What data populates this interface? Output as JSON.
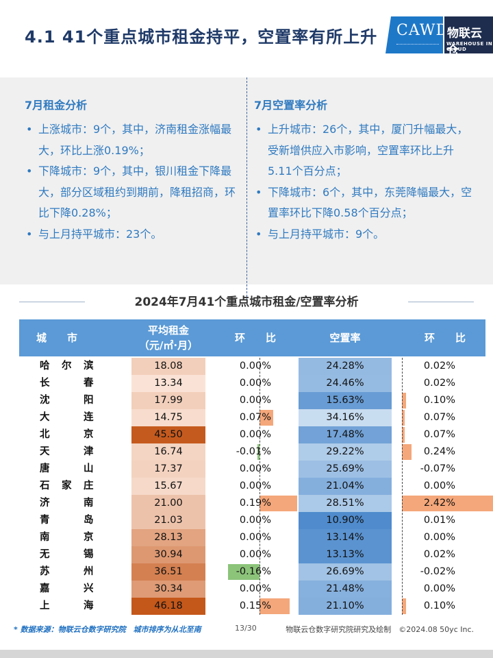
{
  "header": {
    "title": "4.1 41个重点城市租金持平，空置率有所上升",
    "logo_left": "CAWD",
    "logo_right_cn": "物联云仓",
    "logo_right_en": "WAREHOUSE IN CLOUD"
  },
  "rent_analysis": {
    "heading": "7月租金分析",
    "bullets": [
      "上涨城市：9个，其中，济南租金涨幅最大，环比上涨0.19%；",
      "下降城市：9个，其中，银川租金下降最大，部分区域租约到期前，降租招商，环比下降0.28%；",
      "与上月持平城市：23个。"
    ]
  },
  "vacancy_analysis": {
    "heading": "7月空置率分析",
    "bullets": [
      "上升城市：26个，其中，厦门升幅最大，受新增供应入市影响，空置率环比上升5.11个百分点；",
      "下降城市：6个，其中，东莞降幅最大，空置率环比下降0.58个百分点；",
      "与上月持平城市：9个。"
    ]
  },
  "table": {
    "title": "2024年7月41个重点城市租金/空置率分析",
    "headers": {
      "city": "城　　市",
      "rent": "平均租金",
      "rent_unit": "（元/㎡·月）",
      "rent_change": "环　　比",
      "vacancy": "空置率",
      "vacancy_change": "环　　比"
    },
    "colors": {
      "rent_high": "#c4571a",
      "rent_low": "#fae3d6",
      "vacancy_high": "#4f8bcd",
      "vacancy_low": "#c9ddf1",
      "positive_bar": "#f4a77a",
      "negative_bar": "#8cc47a"
    }
  },
  "chart_data": {
    "type": "table",
    "columns": [
      "城市",
      "平均租金（元/㎡·月）",
      "租金环比",
      "空置率",
      "空置率环比"
    ],
    "rows": [
      {
        "city": "哈尔滨",
        "rent": "18.08",
        "rent_chg": "0.00%",
        "vac": "24.28%",
        "vac_chg": "0.02%",
        "rent_v": 18.08,
        "rent_chg_v": 0.0,
        "vac_v": 24.28,
        "vac_chg_v": 0.02
      },
      {
        "city": "长春",
        "rent": "13.34",
        "rent_chg": "0.00%",
        "vac": "24.46%",
        "vac_chg": "0.02%",
        "rent_v": 13.34,
        "rent_chg_v": 0.0,
        "vac_v": 24.46,
        "vac_chg_v": 0.02
      },
      {
        "city": "沈阳",
        "rent": "17.99",
        "rent_chg": "0.00%",
        "vac": "15.63%",
        "vac_chg": "0.10%",
        "rent_v": 17.99,
        "rent_chg_v": 0.0,
        "vac_v": 15.63,
        "vac_chg_v": 0.1
      },
      {
        "city": "大连",
        "rent": "14.75",
        "rent_chg": "0.07%",
        "vac": "34.16%",
        "vac_chg": "0.07%",
        "rent_v": 14.75,
        "rent_chg_v": 0.07,
        "vac_v": 34.16,
        "vac_chg_v": 0.07
      },
      {
        "city": "北京",
        "rent": "45.50",
        "rent_chg": "0.00%",
        "vac": "17.48%",
        "vac_chg": "0.07%",
        "rent_v": 45.5,
        "rent_chg_v": 0.0,
        "vac_v": 17.48,
        "vac_chg_v": 0.07
      },
      {
        "city": "天津",
        "rent": "16.74",
        "rent_chg": "-0.01%",
        "vac": "29.22%",
        "vac_chg": "0.24%",
        "rent_v": 16.74,
        "rent_chg_v": -0.01,
        "vac_v": 29.22,
        "vac_chg_v": 0.24
      },
      {
        "city": "唐山",
        "rent": "17.37",
        "rent_chg": "0.00%",
        "vac": "25.69%",
        "vac_chg": "-0.07%",
        "rent_v": 17.37,
        "rent_chg_v": 0.0,
        "vac_v": 25.69,
        "vac_chg_v": -0.07
      },
      {
        "city": "石家庄",
        "rent": "15.67",
        "rent_chg": "0.00%",
        "vac": "21.04%",
        "vac_chg": "0.00%",
        "rent_v": 15.67,
        "rent_chg_v": 0.0,
        "vac_v": 21.04,
        "vac_chg_v": 0.0
      },
      {
        "city": "济南",
        "rent": "21.00",
        "rent_chg": "0.19%",
        "vac": "28.51%",
        "vac_chg": "2.42%",
        "rent_v": 21.0,
        "rent_chg_v": 0.19,
        "vac_v": 28.51,
        "vac_chg_v": 2.42
      },
      {
        "city": "青岛",
        "rent": "21.03",
        "rent_chg": "0.00%",
        "vac": "10.90%",
        "vac_chg": "0.01%",
        "rent_v": 21.03,
        "rent_chg_v": 0.0,
        "vac_v": 10.9,
        "vac_chg_v": 0.01
      },
      {
        "city": "南京",
        "rent": "28.13",
        "rent_chg": "0.00%",
        "vac": "13.14%",
        "vac_chg": "0.00%",
        "rent_v": 28.13,
        "rent_chg_v": 0.0,
        "vac_v": 13.14,
        "vac_chg_v": 0.0
      },
      {
        "city": "无锡",
        "rent": "30.94",
        "rent_chg": "0.00%",
        "vac": "13.13%",
        "vac_chg": "0.02%",
        "rent_v": 30.94,
        "rent_chg_v": 0.0,
        "vac_v": 13.13,
        "vac_chg_v": 0.02
      },
      {
        "city": "苏州",
        "rent": "36.51",
        "rent_chg": "-0.16%",
        "vac": "26.69%",
        "vac_chg": "-0.02%",
        "rent_v": 36.51,
        "rent_chg_v": -0.16,
        "vac_v": 26.69,
        "vac_chg_v": -0.02
      },
      {
        "city": "嘉兴",
        "rent": "30.34",
        "rent_chg": "0.00%",
        "vac": "21.48%",
        "vac_chg": "0.00%",
        "rent_v": 30.34,
        "rent_chg_v": 0.0,
        "vac_v": 21.48,
        "vac_chg_v": 0.0
      },
      {
        "city": "上海",
        "rent": "46.18",
        "rent_chg": "0.15%",
        "vac": "21.10%",
        "vac_chg": "0.10%",
        "rent_v": 46.18,
        "rent_chg_v": 0.15,
        "vac_v": 21.1,
        "vac_chg_v": 0.1
      }
    ]
  },
  "footer": {
    "source": "* 数据来源：物联云仓数字研究院　城市排序为从北至南",
    "page": "13/30",
    "credit": "物联云仓数字研究院研究及绘制　©2024.08 50yc Inc."
  }
}
